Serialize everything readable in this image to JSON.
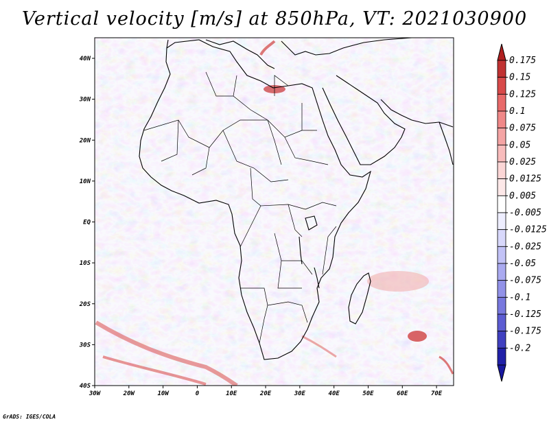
{
  "title": "Vertical velocity [m/s] at 850hPa, VT: 2021030900",
  "credit": "GrADS: IGES/COLA",
  "map": {
    "lon_range": [
      -30,
      75
    ],
    "lat_range": [
      -40,
      45
    ],
    "x_ticks": [
      "30W",
      "20W",
      "10W",
      "0",
      "10E",
      "20E",
      "30E",
      "40E",
      "50E",
      "60E",
      "70E"
    ],
    "y_ticks": [
      "40N",
      "30N",
      "20N",
      "10N",
      "EQ",
      "10S",
      "20S",
      "30S",
      "40S"
    ]
  },
  "colorbar": {
    "levels": [
      {
        "label": "0.175",
        "color": "#c03232"
      },
      {
        "label": "0.15",
        "color": "#d84a4a"
      },
      {
        "label": "0.125",
        "color": "#e86a6a"
      },
      {
        "label": "0.1",
        "color": "#f08888"
      },
      {
        "label": "0.075",
        "color": "#f4a4a4"
      },
      {
        "label": "0.05",
        "color": "#f8bcbc"
      },
      {
        "label": "0.025",
        "color": "#fbd6d6"
      },
      {
        "label": "0.0125",
        "color": "#fde8e8"
      },
      {
        "label": "0.005",
        "color": "#ffffff"
      },
      {
        "label": "-0.005",
        "color": "#eeeeff"
      },
      {
        "label": "-0.0125",
        "color": "#d8d8fb"
      },
      {
        "label": "-0.025",
        "color": "#c2c2f6"
      },
      {
        "label": "-0.05",
        "color": "#aaaaf0"
      },
      {
        "label": "-0.075",
        "color": "#9292e8"
      },
      {
        "label": "-0.1",
        "color": "#7878de"
      },
      {
        "label": "-0.125",
        "color": "#5c5cd2"
      },
      {
        "label": "-0.175",
        "color": "#4040c0"
      },
      {
        "label": "-0.2",
        "color": "#2020a8"
      }
    ],
    "top_cap_color": "#b02020",
    "bottom_cap_color": "#1818a0"
  }
}
